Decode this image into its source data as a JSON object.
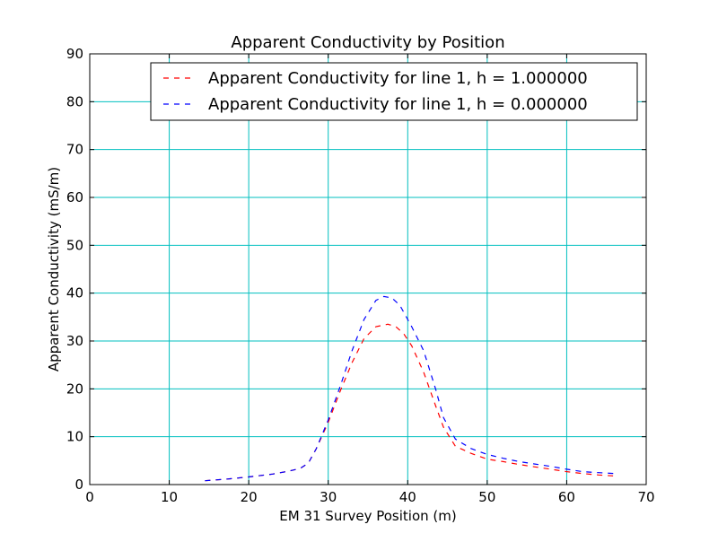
{
  "chart_data": {
    "type": "line",
    "title": "Apparent Conductivity by Position",
    "xlabel": "EM 31 Survey Position (m)",
    "ylabel": "Apparent Conductivity (mS/m)",
    "xlim": [
      0,
      70
    ],
    "ylim": [
      0,
      90
    ],
    "xticks": [
      0,
      10,
      20,
      30,
      40,
      50,
      60,
      70
    ],
    "yticks": [
      0,
      10,
      20,
      30,
      40,
      50,
      60,
      70,
      80,
      90
    ],
    "grid": true,
    "grid_color": "#00bfbf",
    "legend_position": "top-right",
    "series": [
      {
        "name": "Apparent Conductivity for line 1, h = 1.000000",
        "color": "#ff0000",
        "dash": "dashed",
        "x": [
          14.5,
          17,
          20,
          23,
          25,
          26.5,
          27.5,
          28.5,
          30,
          31.5,
          33,
          34.5,
          36,
          37.5,
          38.5,
          39.5,
          40.5,
          42,
          43.5,
          44.5,
          46,
          48,
          50,
          52,
          54,
          56,
          58,
          60,
          62,
          64,
          66
        ],
        "values": [
          0.8,
          1.1,
          1.6,
          2.2,
          2.8,
          3.4,
          4.5,
          7.5,
          13,
          19.5,
          25.5,
          30.5,
          33,
          33.5,
          33,
          31.5,
          29,
          23.5,
          16.5,
          12,
          8,
          6.5,
          5.3,
          4.8,
          4.2,
          3.7,
          3.2,
          2.7,
          2.3,
          2.0,
          1.8
        ]
      },
      {
        "name": "Apparent Conductivity for line 1, h = 0.000000",
        "color": "#0000ff",
        "dash": "dashed",
        "x": [
          14.5,
          17,
          20,
          23,
          25,
          26.5,
          27.5,
          28.5,
          30,
          31.5,
          33,
          34.5,
          36,
          37,
          38,
          39,
          40.5,
          42,
          43.5,
          44.5,
          46,
          48,
          50,
          52,
          54,
          56,
          58,
          60,
          62,
          64,
          66
        ],
        "values": [
          0.8,
          1.1,
          1.6,
          2.2,
          2.8,
          3.4,
          4.5,
          7.5,
          13.5,
          20.5,
          28,
          34.5,
          38.5,
          39.3,
          39,
          37.5,
          33,
          28,
          20,
          14,
          9.5,
          7.5,
          6.3,
          5.5,
          4.8,
          4.3,
          3.8,
          3.2,
          2.7,
          2.5,
          2.3
        ]
      }
    ]
  }
}
